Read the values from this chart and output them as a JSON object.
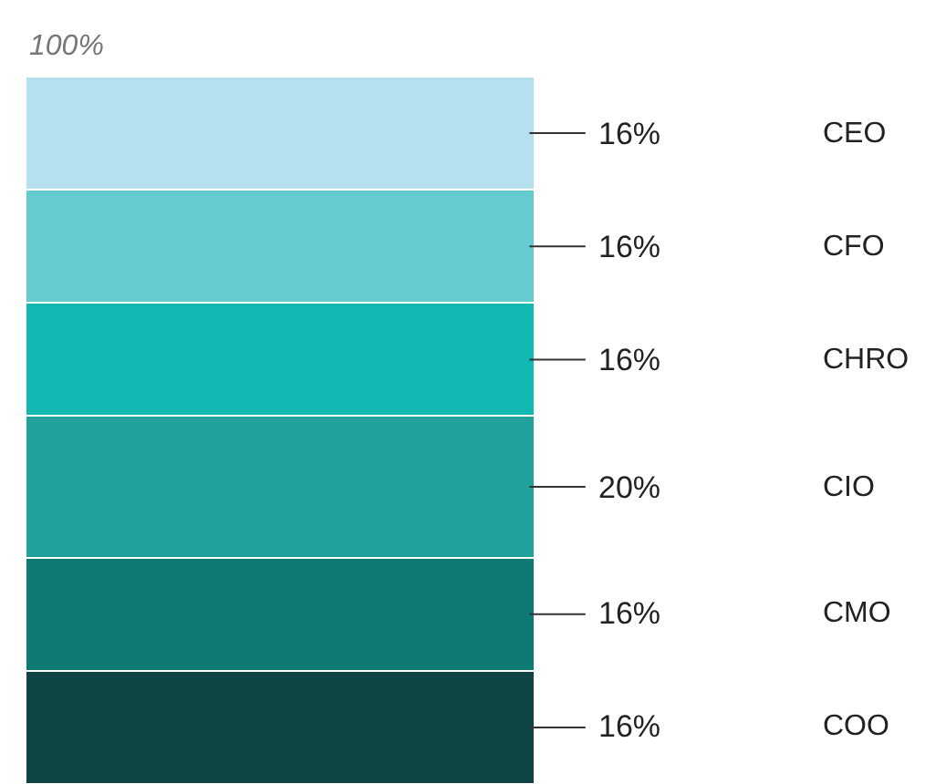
{
  "chart_data": {
    "type": "bar",
    "stacked": true,
    "categories": [
      null
    ],
    "annotations": [
      "100%"
    ],
    "series": [
      {
        "name": "COO",
        "color": "#0f4445",
        "values": [
          16
        ],
        "value_labels": [
          "16%"
        ]
      },
      {
        "name": "CMO",
        "color": "#0e7a74",
        "values": [
          16
        ],
        "value_labels": [
          "16%"
        ]
      },
      {
        "name": "CIO",
        "color": "#22a19d",
        "values": [
          20
        ],
        "value_labels": [
          "20%"
        ]
      },
      {
        "name": "CHRO",
        "color": "#12b8b2",
        "values": [
          16
        ],
        "value_labels": [
          "16%"
        ]
      },
      {
        "name": "CFO",
        "color": "#66cbd1",
        "values": [
          16
        ],
        "value_labels": [
          "16%"
        ]
      },
      {
        "name": "CEO",
        "color": "#b5e1ee",
        "values": [
          16
        ],
        "value_labels": [
          "16%"
        ]
      }
    ]
  }
}
